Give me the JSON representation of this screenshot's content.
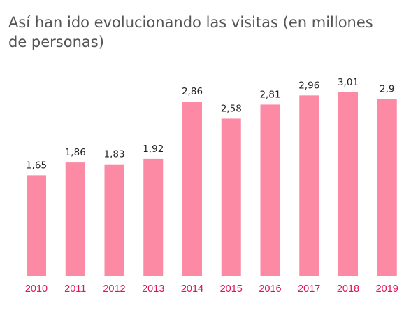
{
  "title": "Así han ido evolucionando las visitas (en millones de personas)",
  "colors": {
    "bar": "#fc8aa5",
    "category_label": "#e0165a",
    "value_label": "#222222",
    "baseline": "#dddddd"
  },
  "chart_data": {
    "type": "bar",
    "title": "Así han ido evolucionando las visitas (en millones de personas)",
    "xlabel": "",
    "ylabel": "",
    "categories": [
      "2010",
      "2011",
      "2012",
      "2013",
      "2014",
      "2015",
      "2016",
      "2017",
      "2018",
      "2019"
    ],
    "values": [
      1.65,
      1.86,
      1.83,
      1.92,
      2.86,
      2.58,
      2.81,
      2.96,
      3.01,
      2.9
    ],
    "value_labels": [
      "1,65",
      "1,86",
      "1,83",
      "1,92",
      "2,86",
      "2,58",
      "2,81",
      "2,96",
      "3,01",
      "2,9"
    ],
    "ylim": [
      0,
      3.01
    ],
    "grid": false,
    "legend": "none"
  }
}
